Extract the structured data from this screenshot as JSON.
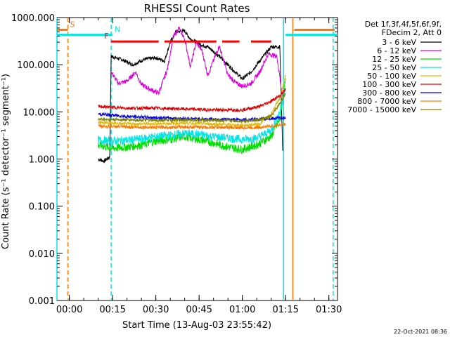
{
  "chart_data": {
    "type": "line",
    "title": "RHESSI Count Rates",
    "xlabel": "Start Time (13-Aug-03 23:55:42)",
    "ylabel": "Count Rate (s⁻¹ detector⁻¹ segment⁻¹)",
    "yscale": "log",
    "ylim": [
      0.001,
      1000
    ],
    "xlim": [
      "23:55:42",
      "01:33:00"
    ],
    "y_ticks": [
      "0.001",
      "0.010",
      "0.100",
      "1.000",
      "10.000",
      "100.000",
      "1000.000"
    ],
    "x_ticks": [
      "00:00",
      "00:15",
      "00:30",
      "00:45",
      "01:00",
      "01:15",
      "01:30"
    ],
    "legend_position": "top-right",
    "legend_header": [
      "Det 1f,3f,4f,5f,6f,9f,",
      "FDecim 2, Att 0"
    ],
    "timestamp": "22-Oct-2021 08:36",
    "series": [
      {
        "name": "3 - 6 keV",
        "color": "#000000",
        "points": [
          [
            "00:10",
            1.0
          ],
          [
            "00:12",
            0.9
          ],
          [
            "00:14",
            1.1
          ],
          [
            "00:14.5",
            150
          ],
          [
            "00:18",
            130
          ],
          [
            "00:22",
            100
          ],
          [
            "00:26",
            130
          ],
          [
            "00:30",
            140
          ],
          [
            "00:33",
            120
          ],
          [
            "00:35",
            300
          ],
          [
            "00:37",
            500
          ],
          [
            "00:40",
            520
          ],
          [
            "00:42",
            350
          ],
          [
            "00:46",
            260
          ],
          [
            "00:48",
            240
          ],
          [
            "00:52",
            150
          ],
          [
            "00:55",
            100
          ],
          [
            "00:57",
            75
          ],
          [
            "01:00",
            50
          ],
          [
            "01:03",
            70
          ],
          [
            "01:06",
            120
          ],
          [
            "01:10",
            240
          ],
          [
            "01:13",
            240
          ],
          [
            "01:14",
            1.5
          ]
        ]
      },
      {
        "name": "6 - 12 keV",
        "color": "#dd00dd",
        "points": [
          [
            "00:14.5",
            70
          ],
          [
            "00:17",
            40
          ],
          [
            "00:20",
            45
          ],
          [
            "00:23",
            70
          ],
          [
            "00:25",
            38
          ],
          [
            "00:28",
            30
          ],
          [
            "00:31",
            25
          ],
          [
            "00:34",
            80
          ],
          [
            "00:36",
            380
          ],
          [
            "00:38",
            600
          ],
          [
            "00:40",
            350
          ],
          [
            "00:42",
            90
          ],
          [
            "00:44",
            300
          ],
          [
            "00:46",
            200
          ],
          [
            "00:48",
            60
          ],
          [
            "00:52",
            250
          ],
          [
            "00:55",
            60
          ],
          [
            "00:58",
            40
          ],
          [
            "01:00",
            35
          ],
          [
            "01:03",
            40
          ],
          [
            "01:06",
            70
          ],
          [
            "01:09",
            170
          ],
          [
            "01:12",
            150
          ],
          [
            "01:14",
            20
          ]
        ]
      },
      {
        "name": "12 - 25 keV",
        "color": "#00dd00",
        "points": [
          [
            "00:10",
            2.0
          ],
          [
            "00:15",
            1.7
          ],
          [
            "00:20",
            1.8
          ],
          [
            "00:25",
            2.0
          ],
          [
            "00:30",
            2.4
          ],
          [
            "00:35",
            2.6
          ],
          [
            "00:40",
            3.0
          ],
          [
            "00:45",
            2.6
          ],
          [
            "00:50",
            2.2
          ],
          [
            "00:55",
            1.8
          ],
          [
            "01:00",
            1.6
          ],
          [
            "01:05",
            2.0
          ],
          [
            "01:10",
            3.0
          ],
          [
            "01:13",
            7.0
          ],
          [
            "01:15",
            50
          ]
        ]
      },
      {
        "name": "25 - 50 keV",
        "color": "#00e5e5",
        "points": [
          [
            "00:10",
            2.5
          ],
          [
            "00:15",
            2.4
          ],
          [
            "00:20",
            2.5
          ],
          [
            "00:25",
            2.7
          ],
          [
            "00:30",
            3.0
          ],
          [
            "00:35",
            3.2
          ],
          [
            "00:40",
            3.5
          ],
          [
            "00:45",
            3.3
          ],
          [
            "00:50",
            3.0
          ],
          [
            "00:55",
            2.8
          ],
          [
            "01:00",
            2.6
          ],
          [
            "01:05",
            2.8
          ],
          [
            "01:10",
            4.0
          ],
          [
            "01:13",
            10
          ],
          [
            "01:15",
            30
          ]
        ]
      },
      {
        "name": "50 - 100 keV",
        "color": "#e5b800",
        "points": [
          [
            "00:10",
            6.0
          ],
          [
            "00:20",
            5.5
          ],
          [
            "00:30",
            5.6
          ],
          [
            "00:40",
            5.8
          ],
          [
            "00:50",
            5.5
          ],
          [
            "01:00",
            5.2
          ],
          [
            "01:06",
            5.5
          ],
          [
            "01:10",
            9
          ],
          [
            "01:13",
            20
          ],
          [
            "01:15",
            60
          ]
        ]
      },
      {
        "name": "100 - 300 keV",
        "color": "#dd0000",
        "points": [
          [
            "00:10",
            13
          ],
          [
            "00:20",
            12
          ],
          [
            "00:30",
            12
          ],
          [
            "00:40",
            11.5
          ],
          [
            "00:50",
            11
          ],
          [
            "01:00",
            11
          ],
          [
            "01:06",
            13
          ],
          [
            "01:10",
            17
          ],
          [
            "01:13",
            22
          ],
          [
            "01:15",
            30
          ]
        ]
      },
      {
        "name": "300 - 800 keV",
        "color": "#0000dd",
        "points": [
          [
            "00:10",
            9
          ],
          [
            "00:20",
            8
          ],
          [
            "00:30",
            7.5
          ],
          [
            "00:40",
            7.2
          ],
          [
            "00:50",
            7.0
          ],
          [
            "01:00",
            6.8
          ],
          [
            "01:06",
            7.0
          ],
          [
            "01:10",
            7.2
          ],
          [
            "01:15",
            7.5
          ]
        ]
      },
      {
        "name": "800 - 7000 keV",
        "color": "#ff7700",
        "points": [
          [
            "00:10",
            5.0
          ],
          [
            "00:20",
            4.8
          ],
          [
            "00:30",
            4.7
          ],
          [
            "00:40",
            4.8
          ],
          [
            "00:50",
            4.7
          ],
          [
            "01:00",
            4.6
          ],
          [
            "01:06",
            4.7
          ],
          [
            "01:10",
            5.0
          ],
          [
            "01:15",
            5.5
          ]
        ]
      },
      {
        "name": "7000 - 15000 keV",
        "color": "#808000",
        "points": [
          [
            "00:10",
            7.0
          ],
          [
            "00:20",
            6.8
          ],
          [
            "00:30",
            6.6
          ],
          [
            "00:40",
            6.8
          ],
          [
            "00:50",
            6.6
          ],
          [
            "01:00",
            6.4
          ],
          [
            "01:06",
            6.8
          ],
          [
            "01:10",
            8
          ],
          [
            "01:13",
            15
          ],
          [
            "01:15",
            25
          ]
        ]
      }
    ],
    "flags": [
      {
        "label": "S",
        "color": "#ff7700",
        "segments": [
          [
            "23:55:42",
            "23:59:30"
          ],
          [
            "01:18",
            "01:32"
          ]
        ],
        "value": 550
      },
      {
        "label": "N",
        "color": "#00e5e5",
        "segments": [
          [
            "23:55:42",
            "00:15"
          ],
          [
            "01:15",
            "01:33"
          ]
        ],
        "value": 430
      },
      {
        "label": "F",
        "color": "#ff0000",
        "segments": [
          [
            "00:14.5",
            "00:31"
          ],
          [
            "00:33",
            "00:51"
          ],
          [
            "00:53",
            "00:59"
          ],
          [
            "01:03",
            "01:10"
          ]
        ],
        "value": 310
      }
    ],
    "vlines": [
      {
        "time": "23:55:42",
        "color": "#00e5e5",
        "style": "solid"
      },
      {
        "time": "23:59:30",
        "color": "#ff7700",
        "style": "dashed"
      },
      {
        "time": "00:14.5",
        "color": "#00e5e5",
        "style": "dashed"
      },
      {
        "time": "01:14.3",
        "color": "#00e5e5",
        "style": "solid"
      },
      {
        "time": "01:17.5",
        "color": "#ff7700",
        "style": "solid"
      },
      {
        "time": "01:31.5",
        "color": "#00e5e5",
        "style": "dashed"
      }
    ]
  }
}
